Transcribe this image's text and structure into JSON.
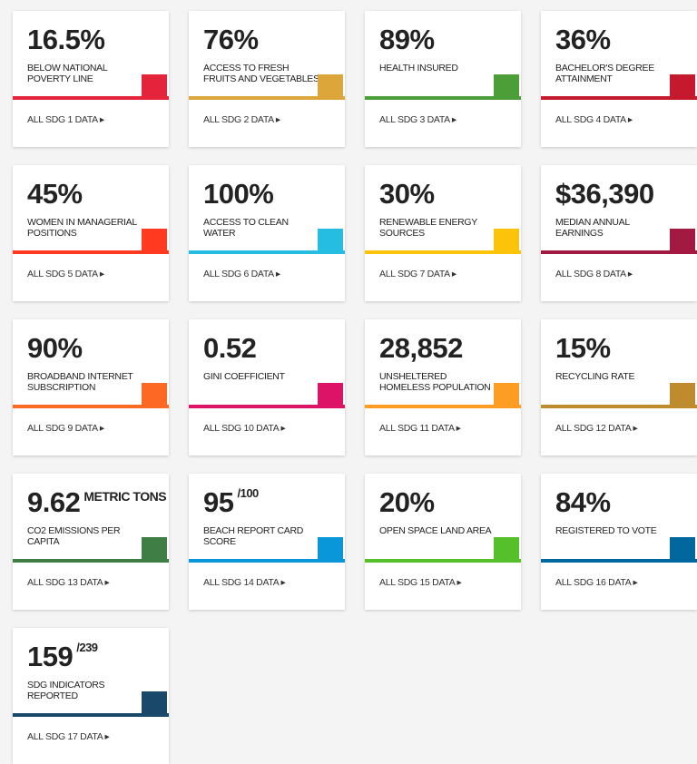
{
  "cards": [
    {
      "value": "16.5%",
      "label": "BELOW NATIONAL POVERTY LINE",
      "link": "ALL SDG 1 DATA ▸",
      "color": "#e5243b"
    },
    {
      "value": "76%",
      "label": "ACCESS TO FRESH FRUITS AND VEGETABLES",
      "link": "ALL SDG 2 DATA ▸",
      "color": "#dda63a"
    },
    {
      "value": "89%",
      "label": "HEALTH INSURED",
      "link": "ALL SDG 3 DATA ▸",
      "color": "#4c9f38"
    },
    {
      "value": "36%",
      "label": "BACHELOR'S DEGREE ATTAINMENT",
      "link": "ALL SDG 4 DATA ▸",
      "color": "#c5192d"
    },
    {
      "value": "45%",
      "label": "WOMEN IN MANAGERIAL POSITIONS",
      "link": "ALL SDG 5 DATA ▸",
      "color": "#ff3a21"
    },
    {
      "value": "100%",
      "label": "ACCESS TO CLEAN WATER",
      "link": "ALL SDG 6 DATA ▸",
      "color": "#26bde2"
    },
    {
      "value": "30%",
      "label": "RENEWABLE ENERGY SOURCES",
      "link": "ALL SDG 7 DATA ▸",
      "color": "#fcc30b"
    },
    {
      "value": "$36,390",
      "label": "MEDIAN ANNUAL EARNINGS",
      "link": "ALL SDG 8 DATA ▸",
      "color": "#a21942"
    },
    {
      "value": "90%",
      "label": "BROADBAND INTERNET SUBSCRIPTION",
      "link": "ALL SDG 9 DATA ▸",
      "color": "#fd6925"
    },
    {
      "value": "0.52",
      "label": "GINI COEFFICIENT",
      "link": "ALL SDG 10 DATA ▸",
      "color": "#dd1367"
    },
    {
      "value": "28,852",
      "label": "UNSHELTERED HOMELESS POPULATION",
      "link": "ALL SDG 11 DATA ▸",
      "color": "#fd9d24"
    },
    {
      "value": "15%",
      "label": "RECYCLING RATE",
      "link": "ALL SDG 12 DATA ▸",
      "color": "#bf8b2e"
    },
    {
      "value": "9.62",
      "suffix": "METRIC TONS",
      "label": "CO2 EMISSIONS PER CAPITA",
      "link": "ALL SDG 13 DATA ▸",
      "color": "#3f7e44"
    },
    {
      "value": "95",
      "suffix": "/100",
      "label": "BEACH REPORT CARD SCORE",
      "link": "ALL SDG 14 DATA ▸",
      "color": "#0a97d9"
    },
    {
      "value": "20%",
      "label": "OPEN SPACE LAND AREA",
      "link": "ALL SDG 15 DATA ▸",
      "color": "#56c02b"
    },
    {
      "value": "84%",
      "label": "REGISTERED TO VOTE",
      "link": "ALL SDG 16 DATA ▸",
      "color": "#00689d"
    },
    {
      "value": "159",
      "suffix": "/239",
      "label": "SDG INDICATORS REPORTED",
      "link": "ALL SDG 17 DATA ▸",
      "color": "#19486a"
    }
  ]
}
